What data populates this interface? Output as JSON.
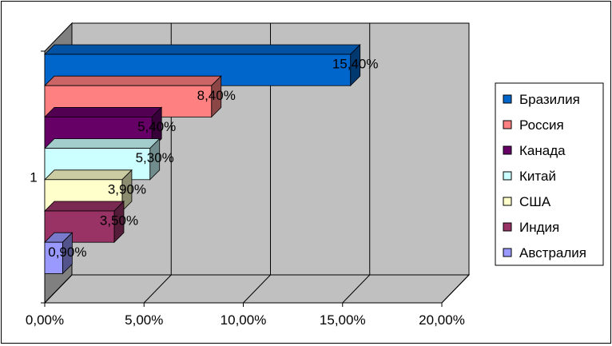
{
  "chart_data": {
    "type": "bar",
    "orientation": "horizontal",
    "style": "3d",
    "categories": [
      "1"
    ],
    "series": [
      {
        "name": "Бразилия",
        "value": 15.4,
        "label": "15,40%",
        "color": "#0066CC"
      },
      {
        "name": "Россия",
        "value": 8.4,
        "label": "8,40%",
        "color": "#FF8080"
      },
      {
        "name": "Канада",
        "value": 5.4,
        "label": "5,40%",
        "color": "#660066"
      },
      {
        "name": "Китай",
        "value": 5.3,
        "label": "5,30%",
        "color": "#CCFFFF"
      },
      {
        "name": "США",
        "value": 3.9,
        "label": "3,90%",
        "color": "#FFFFCC"
      },
      {
        "name": "Индия",
        "value": 3.5,
        "label": "3,50%",
        "color": "#993366"
      },
      {
        "name": "Австралия",
        "value": 0.9,
        "label": "0,90%",
        "color": "#9999FF"
      }
    ],
    "xticks": [
      "0,00%",
      "5,00%",
      "10,00%",
      "15,00%",
      "20,00%"
    ],
    "xlim": [
      0,
      20
    ],
    "grid": true,
    "legend": "right",
    "wall_color": "#C0C0C0",
    "floor_color": "#808080"
  }
}
